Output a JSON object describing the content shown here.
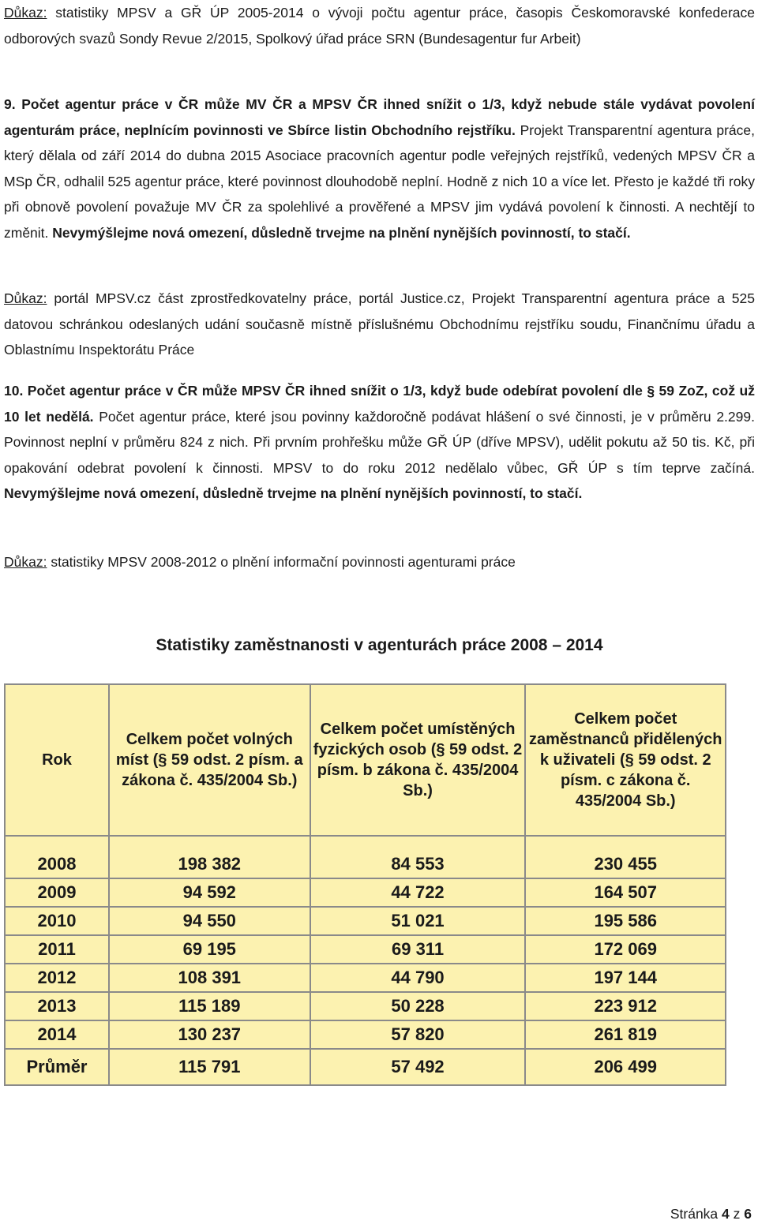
{
  "p1": {
    "label": "Důkaz:",
    "text": " statistiky MPSV a GŘ ÚP 2005-2014 o vývoji počtu agentur práce, časopis Českomoravské konfederace odborových svazů Sondy Revue 2/2015, Spolkový úřad práce SRN (Bundesagentur fur Arbeit)"
  },
  "p2": {
    "bold": "9. Počet agentur práce v ČR může MV ČR a MPSV ČR ihned snížit o 1/3, když nebude stále vydávat povolení agenturám práce, neplnícím povinnosti ve Sbírce listin Obchodního rejstříku.",
    "text": " Projekt Transparentní agentura práce, který dělala od září 2014 do dubna 2015 Asociace pracovních agentur podle veřejných rejstříků, vedených MPSV ČR a MSp ČR, odhalil 525 agentur práce, které povinnost dlouhodobě neplní. Hodně z nich 10 a více let. Přesto je každé tři roky při obnově povolení považuje MV ČR za spolehlivé a prověřené a MPSV jim vydává povolení k činnosti. A nechtějí to změnit. ",
    "bold_end": "Nevymýšlejme nová omezení, důsledně trvejme na plnění nynějších povinností, to stačí."
  },
  "p3": {
    "label": "Důkaz:",
    "text": " portál MPSV.cz část zprostředkovatelny práce, portál Justice.cz, Projekt Transparentní agentura práce a 525 datovou schránkou odeslaných udání současně místně příslušnému Obchodnímu rejstříku soudu, Finančnímu úřadu a Oblastnímu Inspektorátu Práce"
  },
  "p4": {
    "bold": "10. Počet agentur práce v ČR může MPSV ČR ihned snížit o 1/3, když bude odebírat povolení dle § 59 ZoZ, což už 10 let nedělá.",
    "text": " Počet agentur práce, které jsou povinny každoročně podávat hlášení o své činnosti, je v průměru 2.299. Povinnost neplní v průměru 824 z nich. Při prvním prohřešku může GŘ ÚP (dříve MPSV), udělit pokutu až 50 tis. Kč, při opakování odebrat povolení k činnosti. MPSV to do roku 2012 nedělalo vůbec, GŘ ÚP s tím teprve začíná. ",
    "bold_end": "Nevymýšlejme nová omezení, důsledně trvejme na plnění nynějších povinností, to stačí."
  },
  "p5": {
    "label": "Důkaz:",
    "text": " statistiky MPSV 2008-2012 o plnění informační povinnosti agenturami práce"
  },
  "table": {
    "title": "Statistiky zaměstnanosti v agenturách práce 2008 – 2014",
    "headers": [
      "Rok",
      "Celkem počet volných míst (§ 59 odst. 2 písm. a zákona č. 435/2004 Sb.)",
      "Celkem počet umístěných fyzických osob (§ 59 odst. 2 písm. b zákona č. 435/2004 Sb.)",
      "Celkem počet zaměstnanců přidělených k uživateli (§ 59 odst. 2 písm. c zákona č. 435/2004 Sb.)"
    ],
    "rows": [
      [
        "2008",
        "198 382",
        "84 553",
        "230 455"
      ],
      [
        "2009",
        "94 592",
        "44 722",
        "164 507"
      ],
      [
        "2010",
        "94 550",
        "51 021",
        "195 586"
      ],
      [
        "2011",
        "69 195",
        "69 311",
        "172 069"
      ],
      [
        "2012",
        "108 391",
        "44 790",
        "197 144"
      ],
      [
        "2013",
        "115 189",
        "50 228",
        "223 912"
      ],
      [
        "2014",
        "130 237",
        "57 820",
        "261 819"
      ],
      [
        "Průměr",
        "115 791",
        "57 492",
        "206 499"
      ]
    ]
  },
  "footer": {
    "prefix": "Stránka ",
    "page": "4",
    "mid": " z ",
    "total": "6"
  }
}
